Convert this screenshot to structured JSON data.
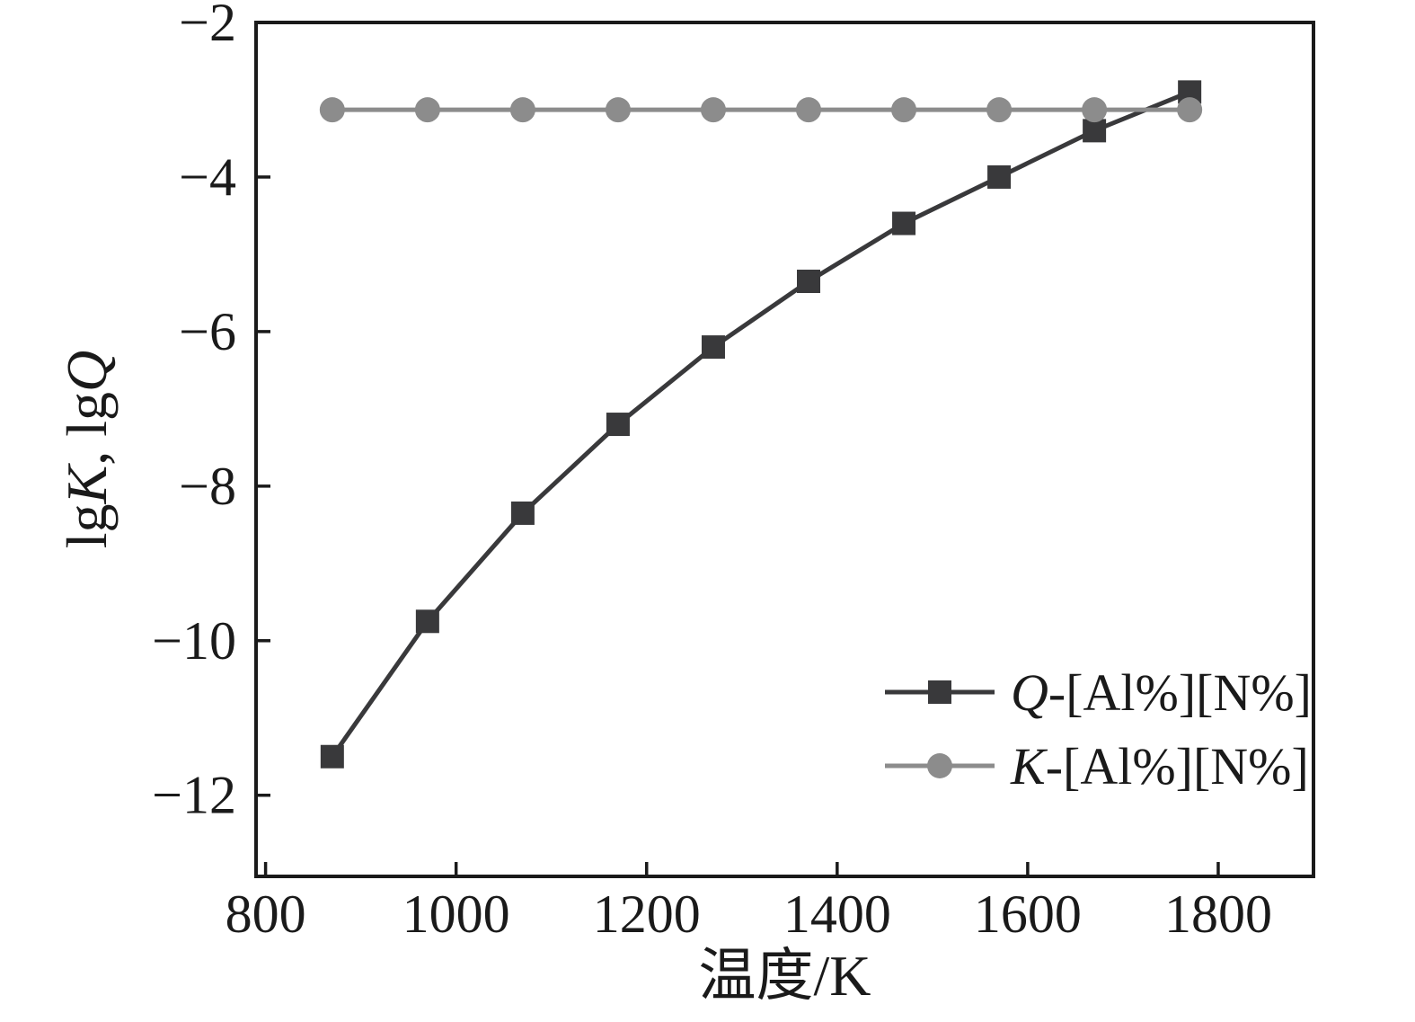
{
  "chart_data": {
    "type": "line",
    "title": "",
    "xlabel": "温度/K",
    "ylabel": "lgK, lgQ",
    "ylabel_parts": [
      {
        "text": "lg",
        "italic": false
      },
      {
        "text": "K",
        "italic": true
      },
      {
        "text": ", lg",
        "italic": false
      },
      {
        "text": "Q",
        "italic": true
      }
    ],
    "x": [
      870,
      970,
      1070,
      1170,
      1270,
      1370,
      1470,
      1570,
      1670,
      1770
    ],
    "series": [
      {
        "name": "Q-[Al%][N%]",
        "name_parts": [
          {
            "text": "Q",
            "italic": true
          },
          {
            "text": "-[Al%][N%]",
            "italic": false
          }
        ],
        "marker": "square",
        "color": "#39393b",
        "values": [
          -11.5,
          -9.75,
          -8.35,
          -7.2,
          -6.2,
          -5.35,
          -4.6,
          -4.0,
          -3.4,
          -2.9
        ]
      },
      {
        "name": "K-[Al%][N%]",
        "name_parts": [
          {
            "text": "K",
            "italic": true
          },
          {
            "text": "-[Al%][N%]",
            "italic": false
          }
        ],
        "marker": "circle",
        "color": "#8c8c8c",
        "values": [
          -3.13,
          -3.13,
          -3.13,
          -3.13,
          -3.13,
          -3.13,
          -3.13,
          -3.13,
          -3.13,
          -3.13
        ]
      }
    ],
    "xlim": [
      790,
      1900
    ],
    "ylim": [
      -13.05,
      -2
    ],
    "xticks": [
      800,
      1000,
      1200,
      1400,
      1600,
      1800
    ],
    "yticks": [
      -2,
      -4,
      -6,
      -8,
      -10,
      -12
    ],
    "grid": false,
    "legend_position": "lower right",
    "axis_color": "#1a1a1a",
    "background": "#ffffff"
  }
}
